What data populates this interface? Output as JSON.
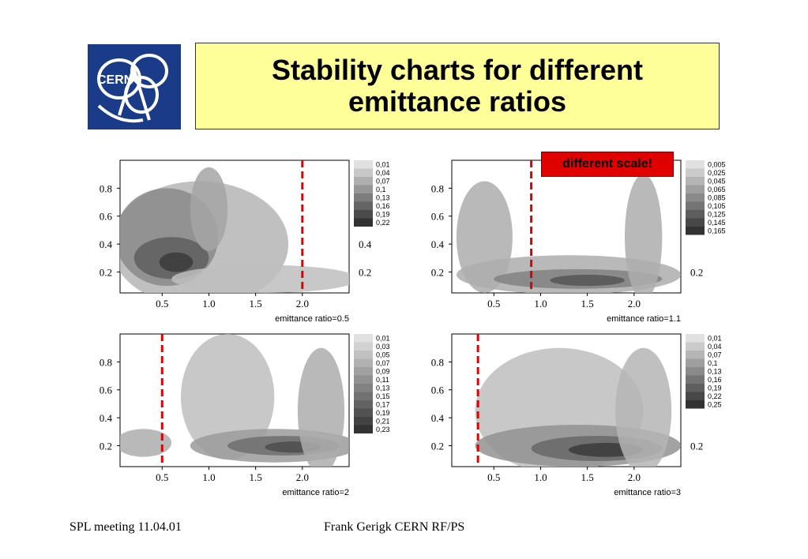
{
  "slide": {
    "title": "Stability charts for different emittance ratios",
    "logo_text": "CERN",
    "warning": "different scale!",
    "footer_left": "SPL meeting 11.04.01",
    "footer_center": "Frank Gerigk CERN RF/PS"
  },
  "colors": {
    "title_bg": "#ffff99",
    "logo_bg": "#1a3b87",
    "warning_bg": "#e00000",
    "marker": "#e00000"
  },
  "chart_data": [
    {
      "type": "heatmap",
      "xlabel": "emittance ratio=0.5",
      "xticks": [
        "0.5",
        "1.0",
        "1.5",
        "2.0"
      ],
      "yticks": [
        "0.8",
        "0.6",
        "0.4",
        "0.2"
      ],
      "right_ticks": [
        "0.4",
        "0.2"
      ],
      "xlim": [
        0.05,
        2.5
      ],
      "ylim": [
        0.05,
        1.0
      ],
      "marker_x": 2.0,
      "legend": [
        "0,01",
        "0,04",
        "0,07",
        "0,1",
        "0,13",
        "0,16",
        "0,19",
        "0,22"
      ]
    },
    {
      "type": "heatmap",
      "xlabel": "emittance ratio=1.1",
      "xticks": [
        "0.5",
        "1.0",
        "1.5",
        "2.0"
      ],
      "yticks": [
        "0.8",
        "0.6",
        "0.4",
        "0.2"
      ],
      "right_ticks": [
        "0.2"
      ],
      "xlim": [
        0.05,
        2.5
      ],
      "ylim": [
        0.05,
        1.0
      ],
      "marker_x": 0.9,
      "legend": [
        "0,005",
        "0,025",
        "0,045",
        "0,065",
        "0,085",
        "0,105",
        "0,125",
        "0,145",
        "0,165"
      ]
    },
    {
      "type": "heatmap",
      "xlabel": "emittance ratio=2",
      "xticks": [
        "0.5",
        "1.0",
        "1.5",
        "2.0"
      ],
      "yticks": [
        "0.8",
        "0.6",
        "0.4",
        "0.2"
      ],
      "right_ticks": [],
      "xlim": [
        0.05,
        2.5
      ],
      "ylim": [
        0.05,
        1.0
      ],
      "marker_x": 0.5,
      "legend": [
        "0,01",
        "0,03",
        "0,05",
        "0,07",
        "0,09",
        "0,11",
        "0,13",
        "0,15",
        "0,17",
        "0,19",
        "0,21",
        "0,23"
      ]
    },
    {
      "type": "heatmap",
      "xlabel": "emittance ratio=3",
      "xticks": [
        "0.5",
        "1.0",
        "1.5",
        "2.0"
      ],
      "yticks": [
        "0.8",
        "0.6",
        "0.4",
        "0.2"
      ],
      "right_ticks": [
        "0.2"
      ],
      "xlim": [
        0.05,
        2.5
      ],
      "ylim": [
        0.05,
        1.0
      ],
      "marker_x": 0.33,
      "legend": [
        "0,01",
        "0,04",
        "0,07",
        "0,1",
        "0,13",
        "0,16",
        "0,19",
        "0,22",
        "0,25"
      ]
    }
  ]
}
